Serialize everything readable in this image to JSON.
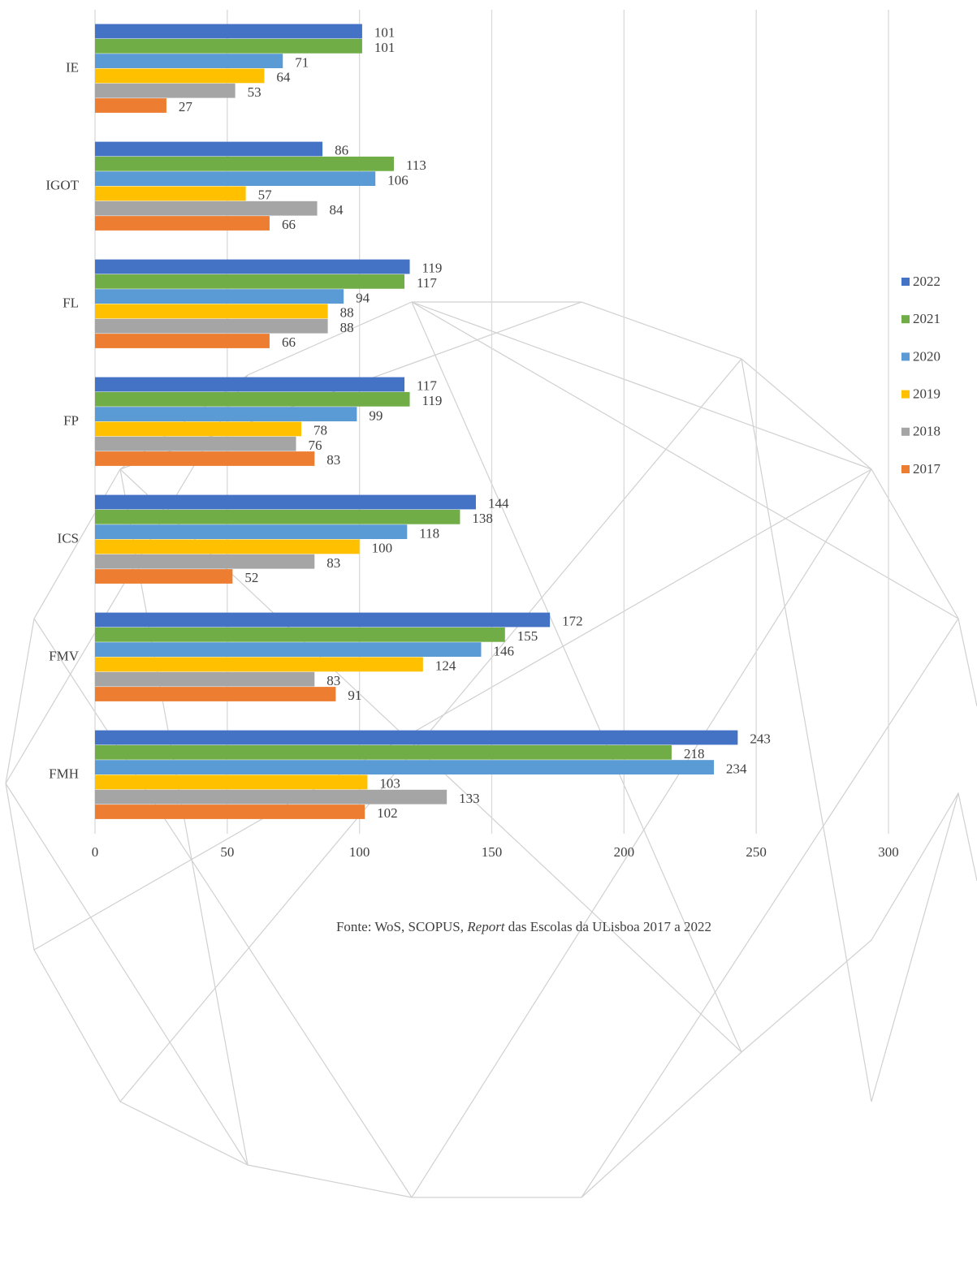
{
  "chart_data": {
    "type": "bar",
    "orientation": "horizontal",
    "categories": [
      "IE",
      "IGOT",
      "FL",
      "FP",
      "ICS",
      "FMV",
      "FMH"
    ],
    "series": [
      {
        "name": "2022",
        "color": "#4472c4",
        "values": [
          101,
          86,
          119,
          117,
          144,
          172,
          243
        ]
      },
      {
        "name": "2021",
        "color": "#70ad47",
        "values": [
          101,
          113,
          117,
          119,
          138,
          155,
          218
        ]
      },
      {
        "name": "2020",
        "color": "#5b9bd5",
        "values": [
          71,
          106,
          94,
          99,
          118,
          146,
          234
        ]
      },
      {
        "name": "2019",
        "color": "#ffc000",
        "values": [
          64,
          57,
          88,
          78,
          100,
          124,
          103
        ]
      },
      {
        "name": "2018",
        "color": "#a5a5a5",
        "values": [
          53,
          84,
          88,
          76,
          83,
          83,
          133
        ]
      },
      {
        "name": "2017",
        "color": "#ed7d31",
        "values": [
          27,
          66,
          66,
          83,
          52,
          91,
          102
        ]
      }
    ],
    "xlim": [
      0,
      300
    ],
    "xticks": [
      0,
      50,
      100,
      150,
      200,
      250,
      300
    ],
    "grid": true,
    "legend": "right",
    "data_labels": true,
    "source": {
      "before": "Fonte: WoS, SCOPUS, ",
      "italic": "Report",
      "after": " das Escolas da ULisboa 2017 a 2022"
    }
  }
}
